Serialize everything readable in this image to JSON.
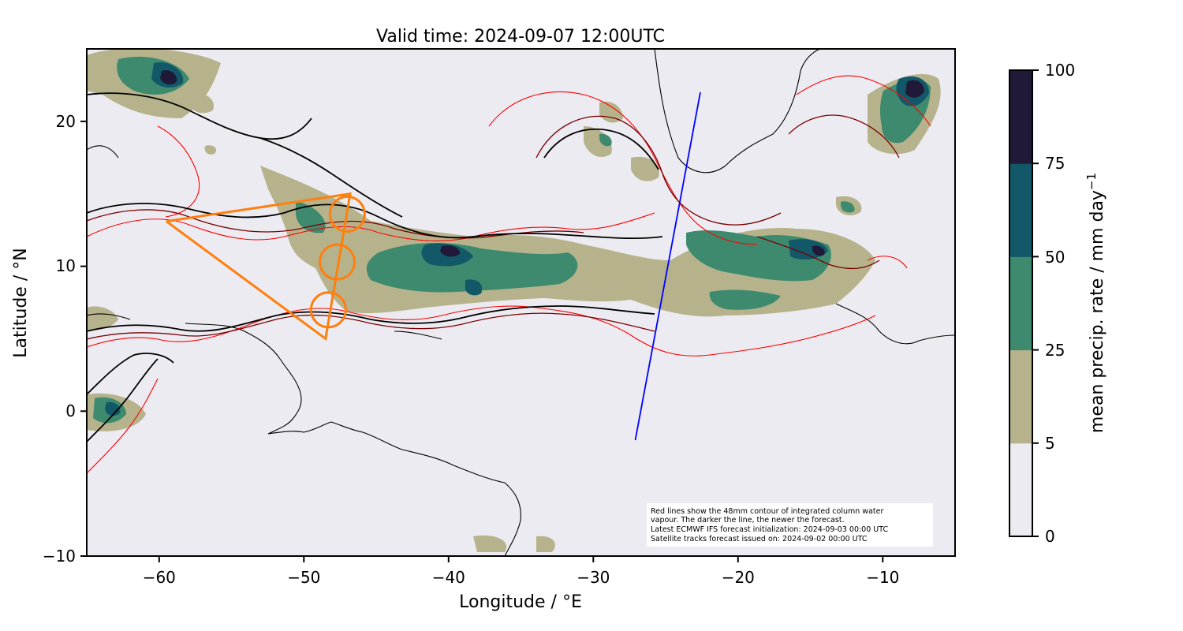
{
  "title": "Valid time: 2024-09-07 12:00UTC",
  "xlabel": "Longitude / °E",
  "ylabel": "Latitude / °N",
  "x_ticks": [
    "−60",
    "−50",
    "−40",
    "−30",
    "−20",
    "−10"
  ],
  "y_ticks": [
    "−10",
    "0",
    "10",
    "20"
  ],
  "colorbar": {
    "label": "mean precip. rate / mm day",
    "label_superscript": "−1",
    "ticks": [
      "0",
      "5",
      "25",
      "50",
      "75",
      "100"
    ],
    "levels": [
      0,
      5,
      25,
      50,
      75,
      100
    ],
    "colors": [
      "#ecebf1",
      "#b6b38c",
      "#3e8a6e",
      "#135868",
      "#201a38"
    ]
  },
  "note": {
    "lines": [
      "Red lines show the 48mm contour of integrated column water",
      "vapour. The darker the line, the newer the forecast.",
      "Latest ECMWF IFS forecast initialization: 2024-09-03 00:00 UTC",
      "Satellite tracks forecast issued on: 2024-09-02 00:00 UTC"
    ]
  },
  "colors": {
    "map_background": "#ecebf1",
    "coastline": "#000000",
    "contour_newest": "#000000",
    "contour_mid": "#7a0000",
    "contour_oldest": "#ff0000",
    "flight_track": "#ff7f0e",
    "satellite_track": "#0000ff"
  },
  "chart_data": {
    "type": "map",
    "xlim": [
      -65,
      -5
    ],
    "ylim": [
      -10,
      25
    ],
    "flight_track": {
      "path": [
        [
          -59.5,
          13.1
        ],
        [
          -46.8,
          15.0
        ],
        [
          -48.5,
          5.0
        ],
        [
          -59.5,
          13.1
        ]
      ],
      "circles": [
        {
          "lon": -47.0,
          "lat": 13.6
        },
        {
          "lon": -47.7,
          "lat": 10.3
        },
        {
          "lon": -48.3,
          "lat": 7.0
        }
      ]
    },
    "satellite_track": [
      [
        -27.1,
        -2.0
      ],
      [
        -22.6,
        22.0
      ]
    ]
  }
}
